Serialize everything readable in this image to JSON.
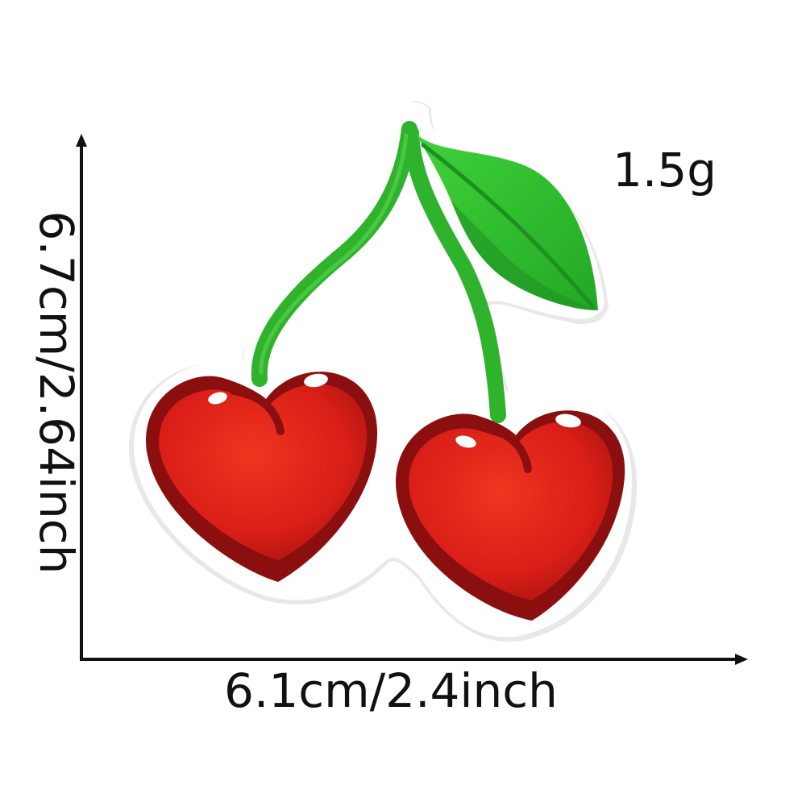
{
  "labels": {
    "weight": "1.5g",
    "width": "6.1cm/2.4inch",
    "height": "6.7cm/2.64inch"
  },
  "patch": {
    "subject": "cherry-patch",
    "colors": {
      "cherry_red": "#e0251a",
      "cherry_dark": "#8c0f10",
      "stem_green": "#3cb53a",
      "leaf_green": "#2fbf2f",
      "leaf_dark": "#1f8f22",
      "felt_border": "#ffffff",
      "border_shadow": "#e6e6e6"
    }
  },
  "arrow_color": "#111111"
}
